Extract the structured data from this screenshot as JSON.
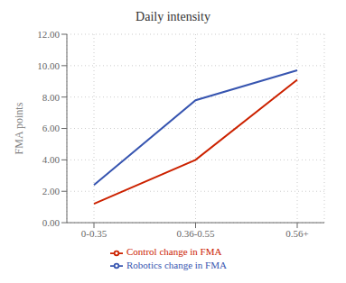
{
  "chart_data": {
    "type": "line",
    "title": "Daily intensity",
    "y_label": "FMA points",
    "categories": [
      "0-0.35",
      "0.36-0.55",
      "0.56+"
    ],
    "series": [
      {
        "name": "Robotics change in FMA",
        "color": "#3755b0",
        "values": [
          2.4,
          7.8,
          9.7
        ]
      },
      {
        "name": "Control change in FMA",
        "color": "#cc2200",
        "values": [
          1.2,
          4.0,
          9.1
        ]
      }
    ],
    "ylim": [
      0,
      12
    ],
    "yticks": [
      {
        "value": 0,
        "label": "0.00"
      },
      {
        "value": 2,
        "label": "2.00"
      },
      {
        "value": 4,
        "label": "4.00"
      },
      {
        "value": 6,
        "label": "6.00"
      },
      {
        "value": 8,
        "label": "8.00"
      },
      {
        "value": 10,
        "label": "10.00"
      },
      {
        "value": 12,
        "label": "12.00"
      }
    ],
    "grid": true,
    "legend": "bottom"
  }
}
